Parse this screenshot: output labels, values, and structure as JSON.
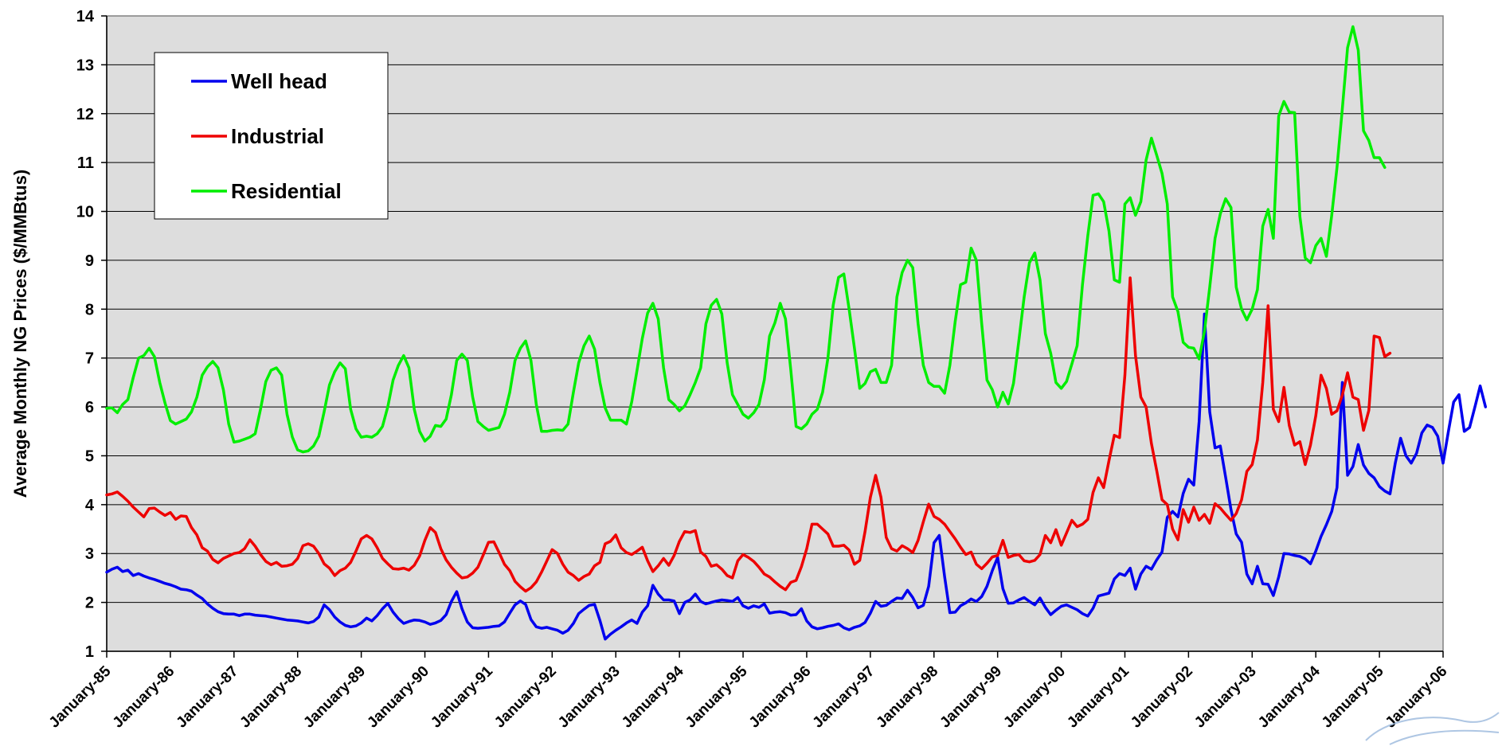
{
  "chart_data": {
    "type": "line",
    "title": "",
    "xlabel": "",
    "ylabel": "Average Monthly NG Prices ($/MMBtus)",
    "ylim": [
      1,
      14
    ],
    "yticks": [
      "1",
      "2",
      "3",
      "4",
      "5",
      "6",
      "7",
      "8",
      "9",
      "10",
      "11",
      "12",
      "13",
      "14"
    ],
    "xlim": [
      "January-85",
      "January-06"
    ],
    "xticks": [
      "January-85",
      "January-86",
      "January-87",
      "January-88",
      "January-89",
      "January-90",
      "January-91",
      "January-92",
      "January-93",
      "January-94",
      "January-95",
      "January-96",
      "January-97",
      "January-98",
      "January-99",
      "January-00",
      "January-01",
      "January-02",
      "January-03",
      "January-04",
      "January-05",
      "January-06"
    ],
    "grid": "horizontal",
    "legend_position": "top-left",
    "series": [
      {
        "name": "Well head",
        "color": "#0000ee",
        "start": "January-85",
        "values": [
          2.62,
          2.68,
          2.72,
          2.63,
          2.66,
          2.55,
          2.59,
          2.54,
          2.5,
          2.47,
          2.43,
          2.39,
          2.36,
          2.32,
          2.27,
          2.26,
          2.23,
          2.15,
          2.08,
          1.97,
          1.88,
          1.81,
          1.77,
          1.76,
          1.76,
          1.73,
          1.76,
          1.76,
          1.74,
          1.73,
          1.72,
          1.7,
          1.68,
          1.66,
          1.64,
          1.63,
          1.62,
          1.6,
          1.58,
          1.61,
          1.7,
          1.95,
          1.85,
          1.7,
          1.6,
          1.53,
          1.5,
          1.52,
          1.58,
          1.68,
          1.62,
          1.73,
          1.87,
          1.98,
          1.8,
          1.67,
          1.57,
          1.61,
          1.64,
          1.63,
          1.6,
          1.55,
          1.58,
          1.63,
          1.75,
          2.02,
          2.22,
          1.87,
          1.6,
          1.48,
          1.47,
          1.48,
          1.49,
          1.51,
          1.52,
          1.6,
          1.78,
          1.95,
          2.03,
          1.96,
          1.65,
          1.5,
          1.47,
          1.49,
          1.46,
          1.43,
          1.37,
          1.43,
          1.57,
          1.77,
          1.86,
          1.94,
          1.96,
          1.63,
          1.25,
          1.35,
          1.43,
          1.5,
          1.58,
          1.64,
          1.57,
          1.8,
          1.93,
          2.35,
          2.17,
          2.05,
          2.05,
          2.03,
          1.77,
          2.0,
          2.05,
          2.17,
          2.02,
          1.97,
          2.0,
          2.03,
          2.05,
          2.04,
          2.02,
          2.1,
          1.93,
          1.88,
          1.93,
          1.9,
          1.97,
          1.78,
          1.8,
          1.81,
          1.79,
          1.74,
          1.75,
          1.87,
          1.62,
          1.5,
          1.46,
          1.48,
          1.51,
          1.53,
          1.56,
          1.48,
          1.44,
          1.49,
          1.52,
          1.59,
          1.78,
          2.02,
          1.92,
          1.94,
          2.02,
          2.09,
          2.08,
          2.25,
          2.1,
          1.89,
          1.94,
          2.33,
          3.22,
          3.37,
          2.53,
          1.79,
          1.8,
          1.93,
          1.99,
          2.07,
          2.02,
          2.12,
          2.33,
          2.65,
          2.92,
          2.28,
          1.98,
          1.99,
          2.05,
          2.1,
          2.02,
          1.95,
          2.09,
          1.9,
          1.75,
          1.84,
          1.92,
          1.95,
          1.9,
          1.85,
          1.77,
          1.72,
          1.88,
          2.13,
          2.16,
          2.19,
          2.48,
          2.59,
          2.55,
          2.7,
          2.27,
          2.58,
          2.74,
          2.68,
          2.87,
          3.03,
          3.74,
          3.86,
          3.75,
          4.23,
          4.52,
          4.4,
          5.7,
          7.9,
          5.9,
          5.16,
          5.2,
          4.56,
          3.9,
          3.4,
          3.23,
          2.58,
          2.38,
          2.74,
          2.38,
          2.37,
          2.14,
          2.52,
          3.0,
          2.99,
          2.96,
          2.94,
          2.89,
          2.79,
          3.05,
          3.35,
          3.59,
          3.86,
          4.35,
          6.5,
          4.6,
          4.78,
          5.23,
          4.81,
          4.64,
          4.55,
          4.37,
          4.28,
          4.22,
          4.86,
          5.36,
          5.0,
          4.85,
          5.05,
          5.47,
          5.63,
          5.58,
          5.4,
          4.85,
          5.5,
          6.1,
          6.25,
          5.5,
          5.58,
          6.0,
          6.43,
          6.0
        ]
      },
      {
        "name": "Industrial",
        "color": "#ee0000",
        "start": "January-85",
        "values": [
          4.2,
          4.22,
          4.26,
          4.17,
          4.07,
          3.95,
          3.85,
          3.75,
          3.92,
          3.93,
          3.85,
          3.78,
          3.84,
          3.7,
          3.77,
          3.76,
          3.53,
          3.38,
          3.12,
          3.05,
          2.88,
          2.81,
          2.9,
          2.95,
          3.0,
          3.02,
          3.1,
          3.28,
          3.15,
          2.98,
          2.84,
          2.77,
          2.82,
          2.74,
          2.75,
          2.78,
          2.9,
          3.16,
          3.2,
          3.15,
          3.0,
          2.79,
          2.7,
          2.55,
          2.65,
          2.7,
          2.82,
          3.05,
          3.3,
          3.37,
          3.3,
          3.12,
          2.9,
          2.79,
          2.69,
          2.68,
          2.7,
          2.66,
          2.76,
          2.95,
          3.27,
          3.53,
          3.43,
          3.1,
          2.87,
          2.72,
          2.6,
          2.5,
          2.52,
          2.6,
          2.72,
          2.97,
          3.23,
          3.24,
          3.02,
          2.78,
          2.65,
          2.43,
          2.32,
          2.23,
          2.3,
          2.42,
          2.62,
          2.85,
          3.08,
          3.0,
          2.78,
          2.62,
          2.55,
          2.45,
          2.53,
          2.58,
          2.75,
          2.82,
          3.2,
          3.25,
          3.38,
          3.12,
          3.02,
          2.98,
          3.05,
          3.13,
          2.85,
          2.63,
          2.75,
          2.9,
          2.76,
          2.96,
          3.25,
          3.45,
          3.43,
          3.47,
          3.03,
          2.94,
          2.74,
          2.77,
          2.68,
          2.55,
          2.5,
          2.85,
          2.98,
          2.92,
          2.84,
          2.72,
          2.58,
          2.52,
          2.42,
          2.33,
          2.26,
          2.41,
          2.45,
          2.73,
          3.1,
          3.6,
          3.6,
          3.5,
          3.4,
          3.15,
          3.15,
          3.17,
          3.07,
          2.78,
          2.86,
          3.45,
          4.15,
          4.6,
          4.15,
          3.33,
          3.1,
          3.05,
          3.16,
          3.1,
          3.02,
          3.27,
          3.65,
          4.01,
          3.76,
          3.7,
          3.6,
          3.45,
          3.3,
          3.13,
          2.98,
          3.03,
          2.78,
          2.69,
          2.8,
          2.93,
          2.96,
          3.27,
          2.92,
          2.96,
          2.98,
          2.85,
          2.83,
          2.86,
          2.98,
          3.37,
          3.22,
          3.49,
          3.17,
          3.42,
          3.68,
          3.55,
          3.6,
          3.7,
          4.25,
          4.55,
          4.35,
          4.9,
          5.42,
          5.37,
          6.65,
          8.64,
          7.05,
          6.2,
          6.0,
          5.25,
          4.7,
          4.1,
          4.0,
          3.5,
          3.28,
          3.9,
          3.64,
          3.95,
          3.68,
          3.8,
          3.62,
          4.02,
          3.93,
          3.8,
          3.68,
          3.82,
          4.1,
          4.68,
          4.82,
          5.32,
          6.5,
          8.07,
          5.95,
          5.7,
          6.4,
          5.62,
          5.22,
          5.29,
          4.82,
          5.22,
          5.82,
          6.65,
          6.38,
          5.85,
          5.92,
          6.24,
          6.7,
          6.2,
          6.15,
          5.52,
          5.93,
          7.45,
          7.42,
          7.03,
          7.1
        ]
      },
      {
        "name": "Residential",
        "color": "#00ee00",
        "start": "January-85",
        "values": [
          5.97,
          5.98,
          5.88,
          6.05,
          6.15,
          6.6,
          7.0,
          7.05,
          7.2,
          7.03,
          6.5,
          6.08,
          5.72,
          5.65,
          5.7,
          5.75,
          5.9,
          6.2,
          6.65,
          6.82,
          6.93,
          6.8,
          6.35,
          5.65,
          5.28,
          5.3,
          5.34,
          5.38,
          5.45,
          5.95,
          6.52,
          6.75,
          6.8,
          6.65,
          5.85,
          5.38,
          5.12,
          5.08,
          5.1,
          5.2,
          5.4,
          5.9,
          6.45,
          6.72,
          6.9,
          6.78,
          5.95,
          5.55,
          5.38,
          5.4,
          5.38,
          5.45,
          5.6,
          6.0,
          6.55,
          6.85,
          7.05,
          6.8,
          5.95,
          5.5,
          5.3,
          5.4,
          5.62,
          5.6,
          5.75,
          6.25,
          6.95,
          7.08,
          6.95,
          6.2,
          5.7,
          5.6,
          5.52,
          5.55,
          5.58,
          5.85,
          6.3,
          6.95,
          7.2,
          7.35,
          6.95,
          6.05,
          5.5,
          5.5,
          5.52,
          5.53,
          5.52,
          5.65,
          6.3,
          6.9,
          7.25,
          7.45,
          7.18,
          6.5,
          5.98,
          5.73,
          5.73,
          5.73,
          5.65,
          6.1,
          6.75,
          7.4,
          7.92,
          8.12,
          7.8,
          6.8,
          6.15,
          6.05,
          5.92,
          6.02,
          6.25,
          6.5,
          6.8,
          7.7,
          8.08,
          8.2,
          7.9,
          6.9,
          6.25,
          6.05,
          5.85,
          5.77,
          5.88,
          6.05,
          6.55,
          7.45,
          7.72,
          8.12,
          7.8,
          6.75,
          5.6,
          5.55,
          5.65,
          5.85,
          5.95,
          6.3,
          7.0,
          8.08,
          8.65,
          8.72,
          8.0,
          7.2,
          6.38,
          6.48,
          6.72,
          6.77,
          6.5,
          6.5,
          6.85,
          8.25,
          8.75,
          9.0,
          8.85,
          7.7,
          6.85,
          6.5,
          6.42,
          6.42,
          6.28,
          6.85,
          7.75,
          8.5,
          8.55,
          9.25,
          9.0,
          7.7,
          6.55,
          6.35,
          6.0,
          6.3,
          6.06,
          6.48,
          7.35,
          8.25,
          8.95,
          9.15,
          8.6,
          7.5,
          7.1,
          6.5,
          6.38,
          6.52,
          6.88,
          7.25,
          8.5,
          9.5,
          10.33,
          10.36,
          10.2,
          9.6,
          8.6,
          8.55,
          10.15,
          10.28,
          9.92,
          10.2,
          11.05,
          11.5,
          11.15,
          10.78,
          10.15,
          8.25,
          7.95,
          7.32,
          7.22,
          7.2,
          6.98,
          7.55,
          8.45,
          9.45,
          9.95,
          10.26,
          10.08,
          8.45,
          8.0,
          7.78,
          8.0,
          8.4,
          9.7,
          10.04,
          9.45,
          11.95,
          12.25,
          12.03,
          12.02,
          9.9,
          9.05,
          8.95,
          9.3,
          9.45,
          9.08,
          9.92,
          10.9,
          12.1,
          13.35,
          13.78,
          13.3,
          11.65,
          11.45,
          11.1,
          11.1,
          10.9
        ]
      }
    ]
  }
}
